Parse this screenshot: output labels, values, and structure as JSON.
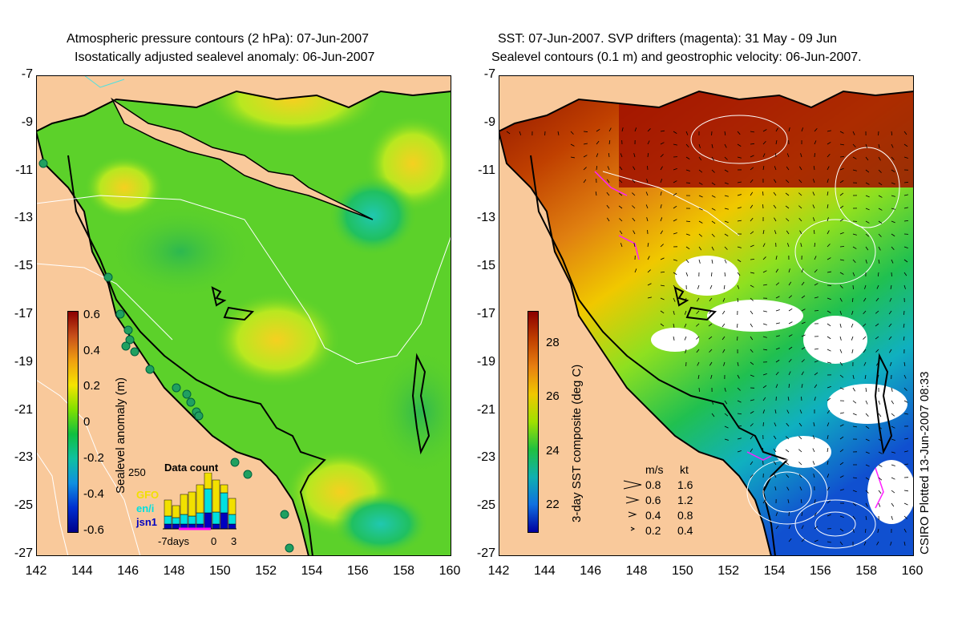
{
  "left": {
    "title_line1": "Atmospheric pressure contours (2 hPa): 07-Jun-2007",
    "title_line2": "Isostatically adjusted sealevel anomaly: 06-Jun-2007",
    "colorbar": {
      "title": "Sealevel anomaly (m)",
      "ticks": [
        "0.6",
        "0.4",
        "0.2",
        "0",
        "-0.2",
        "-0.4",
        "-0.6"
      ],
      "colors": [
        "#8b0000",
        "#c8501a",
        "#f0a010",
        "#f5e400",
        "#80e000",
        "#10c040",
        "#10c0a0",
        "#1090e0",
        "#0030d0",
        "#00008b"
      ]
    },
    "inset": {
      "title": "Data count",
      "ymax": "250",
      "legend": [
        {
          "label": "GFO",
          "color": "#f2e000"
        },
        {
          "label": "en/i",
          "color": "#00e0e0"
        },
        {
          "label": "jsn1",
          "color": "#0000c0"
        }
      ],
      "xlabels": [
        "-7days",
        "0",
        "3"
      ]
    }
  },
  "right": {
    "title_line1": "SST: 07-Jun-2007. SVP drifters (magenta): 31 May - 09 Jun",
    "title_line2": "Sealevel contours (0.1 m) and geostrophic velocity: 06-Jun-2007.",
    "colorbar": {
      "title": "3-day SST composite (deg C)",
      "ticks": [
        "28",
        "26",
        "24",
        "22"
      ],
      "colors": [
        "#8b0000",
        "#c04000",
        "#e88010",
        "#f0c800",
        "#a0e000",
        "#20c040",
        "#10b0b0",
        "#1070e0",
        "#0000a0"
      ]
    },
    "velocity_legend": {
      "header_ms": "m/s",
      "header_kt": "kt",
      "rows": [
        {
          "ms": "0.8",
          "kt": "1.6"
        },
        {
          "ms": "0.6",
          "kt": "1.2"
        },
        {
          "ms": "0.4",
          "kt": "0.8"
        },
        {
          "ms": "0.2",
          "kt": "0.4"
        }
      ]
    },
    "plotted_note": "CSIRO Plotted 13-Jun-2007 08:33"
  },
  "axes": {
    "lat_labels": [
      "-7",
      "-9",
      "-11",
      "-13",
      "-15",
      "-17",
      "-19",
      "-21",
      "-23",
      "-25",
      "-27"
    ],
    "lon_labels": [
      "142",
      "144",
      "146",
      "148",
      "150",
      "152",
      "154",
      "156",
      "158",
      "160"
    ]
  },
  "colors": {
    "land": "#f9c99b",
    "ocean_base": "#5cd12a",
    "coast_line": "#000000",
    "contour": "#ffffff"
  }
}
